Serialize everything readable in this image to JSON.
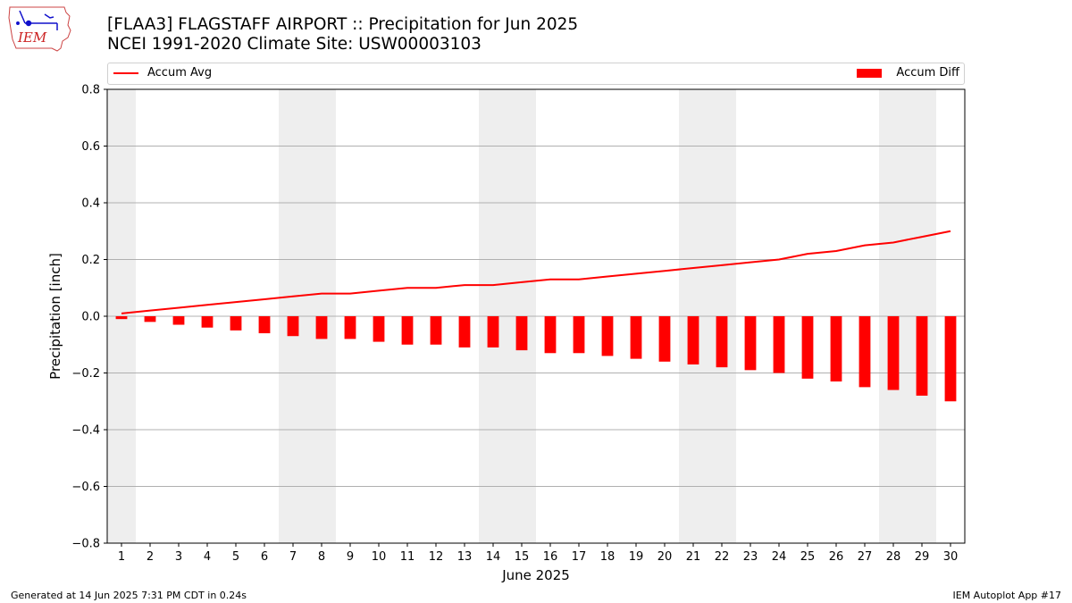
{
  "header": {
    "title": "[FLAA3] FLAGSTAFF AIRPORT :: Precipitation for Jun 2025",
    "subtitle": "NCEI 1991-2020 Climate Site: USW00003103",
    "logo_text": "IEM"
  },
  "footer": {
    "left": "Generated at 14 Jun 2025 7:31 PM CDT in 0.24s",
    "right": "IEM Autoplot App #17"
  },
  "colors": {
    "series": "#ff0000",
    "weekend_shade": "#eeeeee",
    "grid": "#b0b0b0"
  },
  "chart_data": {
    "type": "bar",
    "xlabel": "June 2025",
    "ylabel": "Precipitation [inch]",
    "ylim": [
      -0.8,
      0.8
    ],
    "yticks": [
      -0.8,
      -0.6,
      -0.4,
      -0.2,
      0.0,
      0.2,
      0.4,
      0.6,
      0.8
    ],
    "ytick_labels": [
      "−0.8",
      "−0.6",
      "−0.4",
      "−0.2",
      "0.0",
      "0.2",
      "0.4",
      "0.6",
      "0.8"
    ],
    "x": [
      1,
      2,
      3,
      4,
      5,
      6,
      7,
      8,
      9,
      10,
      11,
      12,
      13,
      14,
      15,
      16,
      17,
      18,
      19,
      20,
      21,
      22,
      23,
      24,
      25,
      26,
      27,
      28,
      29,
      30
    ],
    "shaded_days": [
      1,
      7,
      8,
      14,
      15,
      21,
      22,
      28,
      29
    ],
    "grid": "horizontal",
    "legend_position": "top",
    "series": [
      {
        "name": "Accum Avg",
        "type": "line",
        "values": [
          0.01,
          0.02,
          0.03,
          0.04,
          0.05,
          0.06,
          0.07,
          0.08,
          0.08,
          0.09,
          0.1,
          0.1,
          0.11,
          0.11,
          0.12,
          0.13,
          0.13,
          0.14,
          0.15,
          0.16,
          0.17,
          0.18,
          0.19,
          0.2,
          0.22,
          0.23,
          0.25,
          0.26,
          0.28,
          0.3
        ]
      },
      {
        "name": "Accum Diff",
        "type": "bar",
        "values": [
          -0.01,
          -0.02,
          -0.03,
          -0.04,
          -0.05,
          -0.06,
          -0.07,
          -0.08,
          -0.08,
          -0.09,
          -0.1,
          -0.1,
          -0.11,
          -0.11,
          -0.12,
          -0.13,
          -0.13,
          -0.14,
          -0.15,
          -0.16,
          -0.17,
          -0.18,
          -0.19,
          -0.2,
          -0.22,
          -0.23,
          -0.25,
          -0.26,
          -0.28,
          -0.3
        ]
      }
    ]
  }
}
